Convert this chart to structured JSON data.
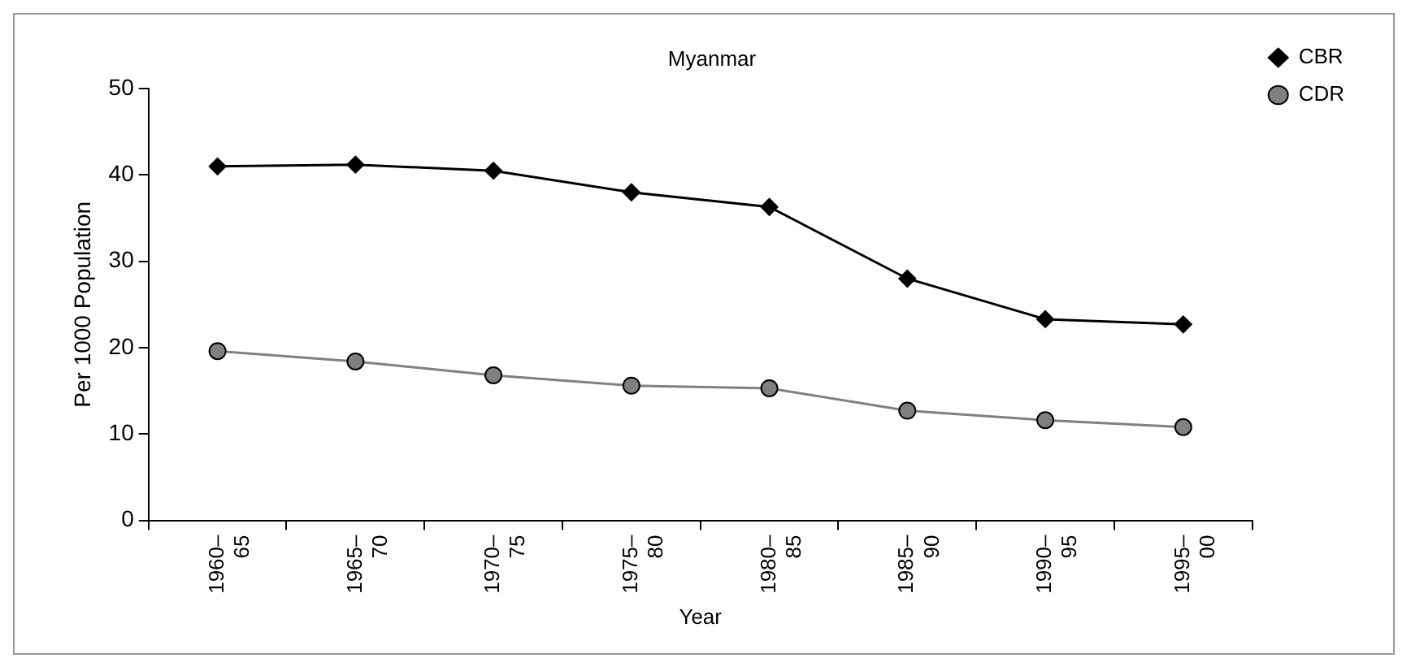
{
  "chart_data": {
    "type": "line",
    "title": "Myanmar",
    "xlabel": "Year",
    "ylabel": "Per 1000 Population",
    "categories": [
      "1960–65",
      "1965–70",
      "1970–75",
      "1975–80",
      "1980–85",
      "1985–90",
      "1990–95",
      "1995–00"
    ],
    "series": [
      {
        "name": "CBR",
        "color": "#000000",
        "marker": "diamond",
        "values": [
          41,
          41.2,
          40.5,
          38,
          36.3,
          28,
          23.3,
          22.7
        ]
      },
      {
        "name": "CDR",
        "color": "#808080",
        "marker": "circle",
        "values": [
          19.6,
          18.4,
          16.8,
          15.6,
          15.3,
          12.7,
          11.6,
          10.8
        ]
      }
    ],
    "ylim": [
      0,
      50
    ],
    "yticks": [
      0,
      10,
      20,
      30,
      40,
      50
    ],
    "grid": false,
    "legend": "top right"
  }
}
